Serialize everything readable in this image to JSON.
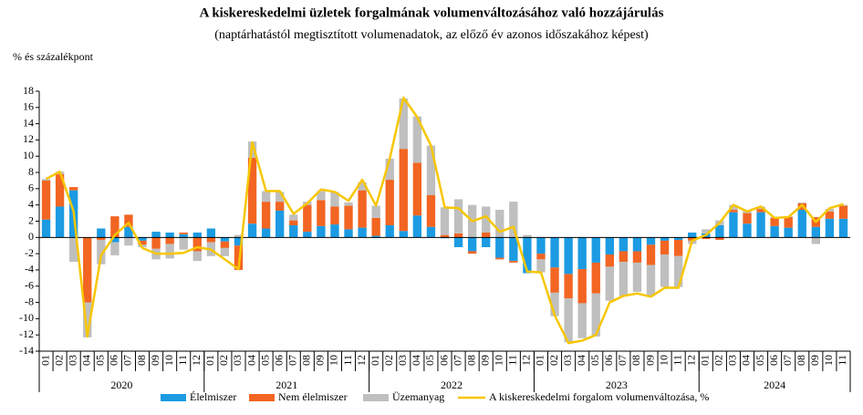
{
  "chart_data": {
    "type": "bar",
    "stacked": true,
    "title": "A kiskereskedelmi üzletek forgalmának volumenváltozásához való hozzájárulás",
    "subtitle": "(naptárhatástól megtisztított volumenadatok, az előző év azonos időszakához képest)",
    "y_label": "% és százalékpont",
    "categories": [
      "01",
      "02",
      "03",
      "04",
      "05",
      "06",
      "07",
      "08",
      "09",
      "10",
      "11",
      "12",
      "01",
      "02",
      "03",
      "04",
      "05",
      "06",
      "07",
      "08",
      "09",
      "10",
      "11",
      "12",
      "01",
      "02",
      "03",
      "04",
      "05",
      "06",
      "07",
      "08",
      "09",
      "10",
      "11",
      "12",
      "01",
      "02",
      "03",
      "04",
      "05",
      "06",
      "07",
      "08",
      "09",
      "10",
      "11",
      "12",
      "01",
      "02",
      "03",
      "04",
      "05",
      "06",
      "07",
      "08",
      "09",
      "10",
      "11"
    ],
    "years": [
      "2020",
      "2021",
      "2022",
      "2023",
      "2024"
    ],
    "ylim": [
      -14,
      18
    ],
    "yticks": [
      -14,
      -12,
      -10,
      -8,
      -6,
      -4,
      -2,
      0,
      2,
      4,
      6,
      8,
      10,
      12,
      14,
      16,
      18
    ],
    "series": [
      {
        "name": "Élelmiszer",
        "type": "bar",
        "color": "#1c9be3",
        "values": [
          2.2,
          3.8,
          5.8,
          0,
          1.1,
          -0.6,
          1.3,
          -0.4,
          0.7,
          0.6,
          0.4,
          0.6,
          1.1,
          -0.5,
          -1.0,
          1.7,
          1.1,
          3.3,
          1.5,
          0.7,
          1.4,
          1.6,
          1.0,
          1.2,
          0.2,
          1.5,
          0.8,
          2.7,
          1.3,
          -0.1,
          -1.2,
          -1.7,
          -1.2,
          -2.5,
          -2.9,
          -4.4,
          -2.0,
          -3.7,
          -4.5,
          -3.9,
          -3.1,
          -2.1,
          -1.7,
          -1.7,
          -0.9,
          -0.4,
          -0.3,
          0.6,
          0.5,
          1.5,
          3.1,
          1.7,
          3.1,
          1.4,
          1.2,
          3.4,
          1.3,
          2.3,
          2.3
        ]
      },
      {
        "name": "Nem élelmiszer",
        "type": "bar",
        "color": "#f26522",
        "values": [
          4.8,
          4.0,
          0.4,
          -8.0,
          -0.3,
          2.6,
          1.5,
          -0.5,
          -1.4,
          -0.8,
          0.2,
          -1.7,
          -0.6,
          -0.8,
          -3.0,
          8.1,
          3.3,
          1.1,
          0.6,
          3.3,
          3.2,
          2.2,
          2.9,
          4.6,
          2.2,
          5.6,
          10.1,
          6.5,
          3.9,
          0.3,
          0.5,
          -0.3,
          0.6,
          -0.2,
          -0.2,
          0.0,
          -0.7,
          -3.1,
          -3.0,
          -4.2,
          -3.8,
          -1.5,
          -1.3,
          -1.4,
          -2.5,
          -1.7,
          -2.0,
          -0.4,
          -0.2,
          -0.3,
          0.3,
          1.3,
          0.4,
          1.0,
          1.3,
          0.8,
          1.2,
          0.9,
          1.6
        ]
      },
      {
        "name": "Üzemanyag",
        "type": "bar",
        "color": "#bfbfbf",
        "values": [
          0.2,
          0.3,
          -3.0,
          -4.3,
          -3.0,
          -1.6,
          -1.0,
          -0.3,
          -1.3,
          -1.8,
          -1.5,
          -1.2,
          -1.7,
          -1.0,
          0.3,
          2.0,
          1.3,
          1.2,
          0.7,
          0.4,
          1.1,
          1.8,
          0.4,
          1.0,
          1.5,
          2.6,
          6.2,
          5.7,
          6.1,
          3.4,
          4.2,
          4.0,
          3.2,
          3.4,
          4.4,
          0.3,
          -1.6,
          -2.9,
          -5.4,
          -4.3,
          -5.3,
          -4.2,
          -4.2,
          -3.6,
          -3.8,
          -4.0,
          -3.8,
          -0.4,
          0.5,
          0.6,
          0.6,
          0.3,
          0.3,
          0.1,
          0.1,
          0.1,
          -0.8,
          0.3,
          0.1
        ]
      },
      {
        "name": "A kiskereskedelmi forgalom volumenváltozása, %",
        "type": "line",
        "color": "#f7c600",
        "values": [
          7.2,
          8.1,
          3.2,
          -12.2,
          -2.2,
          0.3,
          1.8,
          -1.3,
          -2.0,
          -2.0,
          -1.9,
          -1.2,
          -1.5,
          -2.7,
          -3.9,
          11.7,
          5.7,
          5.7,
          2.9,
          4.2,
          5.9,
          5.6,
          4.5,
          7.1,
          3.9,
          9.7,
          17.2,
          14.8,
          11.3,
          3.7,
          3.6,
          2.0,
          2.6,
          0.7,
          1.3,
          -4.2,
          -4.3,
          -9.6,
          -13.0,
          -12.7,
          -12.0,
          -8.0,
          -7.2,
          -6.9,
          -7.3,
          -6.2,
          -6.2,
          -0.4,
          0.3,
          1.8,
          4.0,
          3.2,
          3.8,
          2.4,
          2.5,
          4.0,
          1.9,
          3.6,
          4.1
        ]
      }
    ]
  }
}
